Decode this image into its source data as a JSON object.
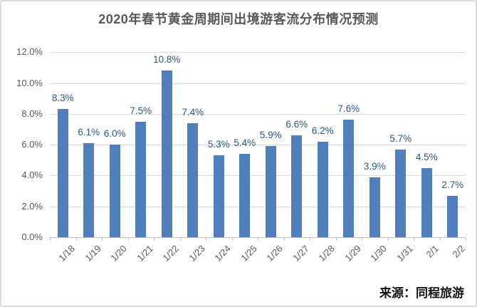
{
  "chart_data": {
    "type": "bar",
    "title": "2020年春节黄金周期间出境游客流分布情况预测",
    "categories": [
      "1/18",
      "1/19",
      "1/20",
      "1/21",
      "1/22",
      "1/23",
      "1/24",
      "1/25",
      "1/26",
      "1/27",
      "1/28",
      "1/29",
      "1/30",
      "1/31",
      "2/1",
      "2/2"
    ],
    "values": [
      8.3,
      6.1,
      6.0,
      7.5,
      10.8,
      7.4,
      5.3,
      5.4,
      5.9,
      6.6,
      6.2,
      7.6,
      3.9,
      5.7,
      4.5,
      2.7
    ],
    "data_labels": [
      "8.3%",
      "6.1%",
      "6.0%",
      "7.5%",
      "10.8%",
      "7.4%",
      "5.3%",
      "5.4%",
      "5.9%",
      "6.6%",
      "6.2%",
      "7.6%",
      "3.9%",
      "5.7%",
      "4.5%",
      "2.7%"
    ],
    "ytick_labels": [
      "0.0%",
      "2.0%",
      "4.0%",
      "6.0%",
      "8.0%",
      "10.0%",
      "12.0%"
    ],
    "ytick_values": [
      0,
      2,
      4,
      6,
      8,
      10,
      12
    ],
    "ylim": [
      0,
      12
    ],
    "grid": true,
    "legend": "none",
    "xlabel": "",
    "ylabel": "",
    "source": "来源：同程旅游",
    "colors": {
      "bar": "#4F7FBC",
      "data_label": "#2A5783",
      "axis_text": "#595959",
      "title_text": "#595959",
      "gridline": "#D9D9D9",
      "axis_line": "#BFBFBF",
      "background": "#FFFFFF",
      "frame_border": "#DCDCDC",
      "source_text": "#111111"
    }
  }
}
